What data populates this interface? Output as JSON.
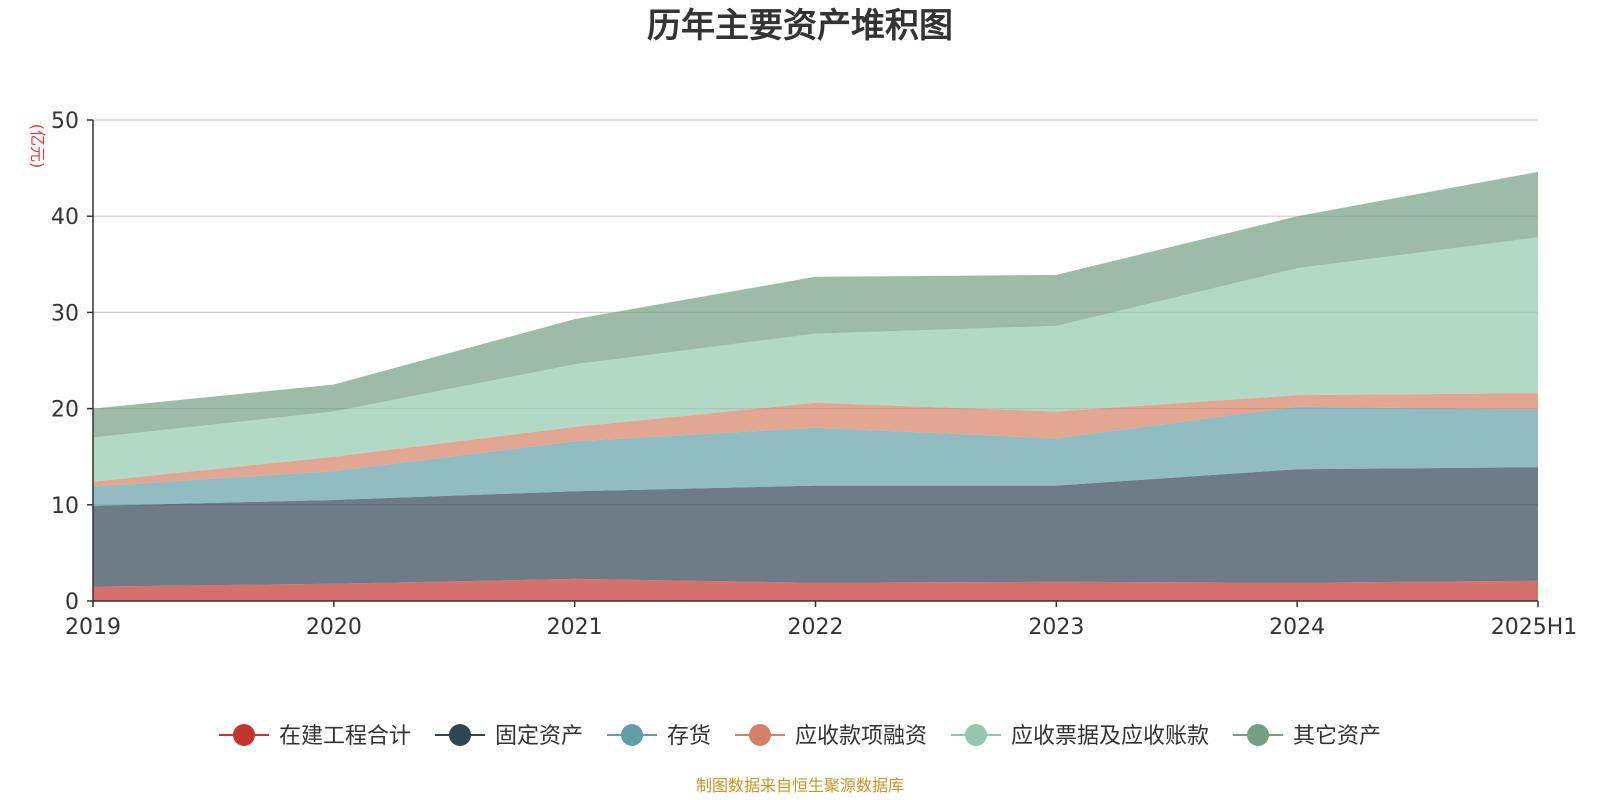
{
  "colors": {
    "title": "#333333",
    "ylabel": "#e4393c",
    "source": "#c8962a",
    "grid": "#cccccc",
    "axis": "#333333"
  },
  "chart_data": {
    "type": "area",
    "stacked": true,
    "title": "历年主要资产堆积图",
    "ylabel": "(亿元)",
    "xlabel": "",
    "categories": [
      "2019",
      "2020",
      "2021",
      "2022",
      "2023",
      "2024",
      "2025H1"
    ],
    "ylim": [
      0,
      50
    ],
    "yticks": [
      0,
      10,
      20,
      30,
      40,
      50
    ],
    "grid": true,
    "legend_position": "bottom",
    "series": [
      {
        "name": "在建工程合计",
        "color": "#c23531",
        "values": [
          1.5,
          1.8,
          2.3,
          1.9,
          2.0,
          1.9,
          2.1
        ]
      },
      {
        "name": "固定资产",
        "color": "#2f4554",
        "values": [
          8.4,
          8.7,
          9.1,
          10.1,
          10.0,
          11.8,
          11.8
        ]
      },
      {
        "name": "存货",
        "color": "#61a0a8",
        "values": [
          2.0,
          3.0,
          5.2,
          6.0,
          4.9,
          6.5,
          6.0
        ]
      },
      {
        "name": "应收款项融资",
        "color": "#d48265",
        "values": [
          0.5,
          1.5,
          1.5,
          2.6,
          2.8,
          1.2,
          1.7
        ]
      },
      {
        "name": "应收票据及应收账款",
        "color": "#91c7ae",
        "values": [
          4.6,
          4.7,
          6.5,
          7.2,
          8.9,
          13.2,
          16.2
        ]
      },
      {
        "name": "其它资产",
        "color": "#749f83",
        "values": [
          3.0,
          2.8,
          4.7,
          5.9,
          5.3,
          5.4,
          6.8
        ]
      }
    ]
  },
  "source_note": "制图数据来自恒生聚源数据库"
}
